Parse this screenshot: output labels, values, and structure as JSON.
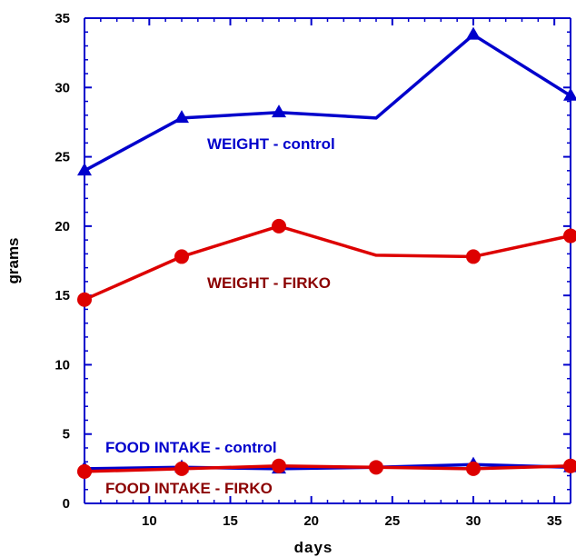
{
  "chart_data": {
    "type": "line",
    "xlabel": "days",
    "ylabel": "grams",
    "xlim": [
      6,
      36
    ],
    "ylim": [
      0,
      35
    ],
    "xticks": [
      10,
      15,
      20,
      25,
      30,
      35
    ],
    "yticks": [
      0,
      5,
      10,
      15,
      20,
      25,
      30,
      35
    ],
    "grid": false,
    "series": [
      {
        "name": "WEIGHT - control",
        "color": "#0000cc",
        "marker": "triangle",
        "points": [
          {
            "x": 6,
            "y": 24.0
          },
          {
            "x": 12,
            "y": 27.8
          },
          {
            "x": 18,
            "y": 28.2
          },
          {
            "x": 24,
            "y": 27.8,
            "marker": false
          },
          {
            "x": 30,
            "y": 33.8
          },
          {
            "x": 36,
            "y": 29.4
          }
        ]
      },
      {
        "name": "WEIGHT - FIRKO",
        "color": "#dd0000",
        "marker": "circle",
        "points": [
          {
            "x": 6,
            "y": 14.7
          },
          {
            "x": 12,
            "y": 17.8
          },
          {
            "x": 18,
            "y": 20.0
          },
          {
            "x": 24,
            "y": 17.9,
            "marker": false
          },
          {
            "x": 30,
            "y": 17.8
          },
          {
            "x": 36,
            "y": 19.3
          }
        ]
      },
      {
        "name": "FOOD INTAKE - control",
        "color": "#0000cc",
        "marker": "triangle",
        "points": [
          {
            "x": 6,
            "y": 2.5
          },
          {
            "x": 12,
            "y": 2.6
          },
          {
            "x": 18,
            "y": 2.5
          },
          {
            "x": 24,
            "y": 2.6,
            "marker": false
          },
          {
            "x": 30,
            "y": 2.8
          },
          {
            "x": 36,
            "y": 2.6
          }
        ]
      },
      {
        "name": "FOOD INTAKE - FIRKO",
        "color": "#dd0000",
        "marker": "circle",
        "points": [
          {
            "x": 6,
            "y": 2.3
          },
          {
            "x": 12,
            "y": 2.5
          },
          {
            "x": 18,
            "y": 2.7
          },
          {
            "x": 24,
            "y": 2.6
          },
          {
            "x": 30,
            "y": 2.5
          },
          {
            "x": 36,
            "y": 2.7
          }
        ]
      }
    ],
    "annotations": [
      {
        "text": "WEIGHT - control",
        "color": "#0000cc"
      },
      {
        "text": "WEIGHT - FIRKO",
        "color": "#8b0000"
      },
      {
        "text": "FOOD INTAKE - control",
        "color": "#0000cc"
      },
      {
        "text": "FOOD INTAKE - FIRKO",
        "color": "#8b0000"
      }
    ]
  }
}
